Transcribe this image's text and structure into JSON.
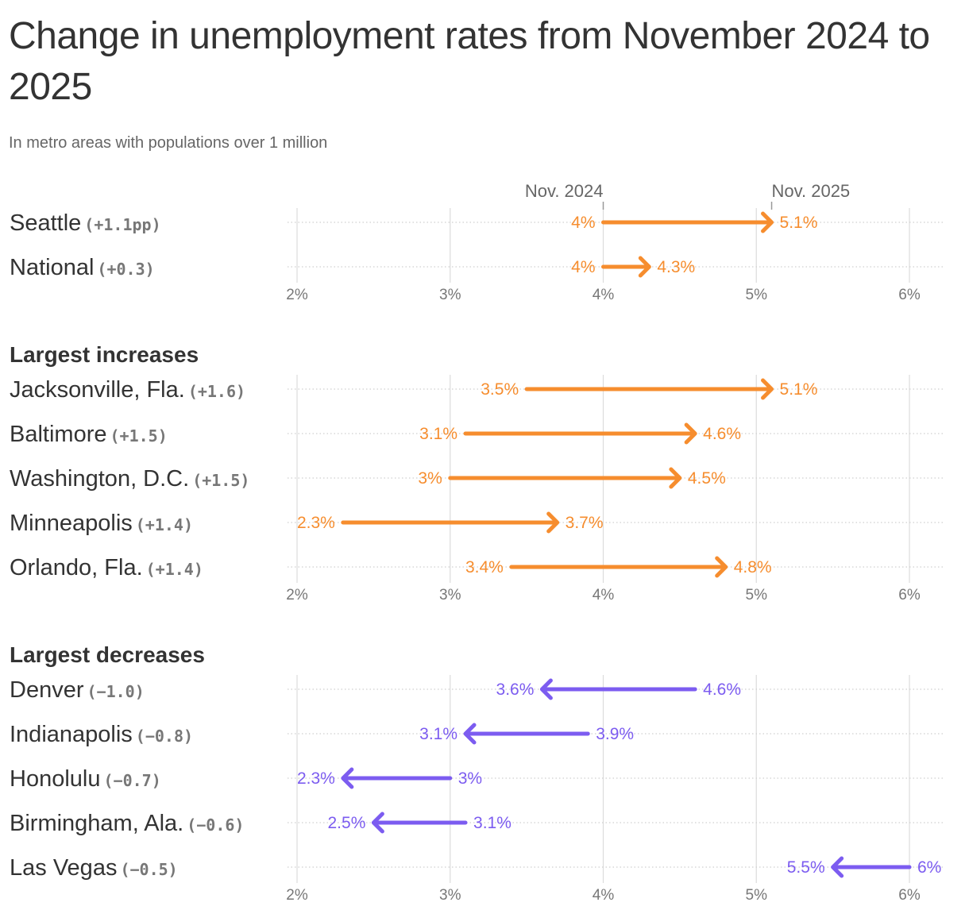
{
  "title": "Change in unemployment rates from November 2024 to 2025",
  "subtitle": "In metro areas with populations over 1 million",
  "colors": {
    "increase": "#f68d2e",
    "decrease": "#7c5cf0",
    "label": "#333333",
    "change": "#777777",
    "axis": "#777777",
    "grid": "#dcdcdc"
  },
  "chart_data": [
    {
      "type": "arrow",
      "group_title": "",
      "endpoint_labels": {
        "start": "Nov. 2024",
        "end": "Nov. 2025"
      },
      "x_ticks": [
        "2%",
        "3%",
        "4%",
        "5%",
        "6%"
      ],
      "xlim": [
        2,
        6
      ],
      "rows": [
        {
          "name": "Seattle",
          "change": "(+1.1pp)",
          "start": 4.0,
          "end": 5.1,
          "start_label": "4%",
          "end_label": "5.1%"
        },
        {
          "name": "National",
          "change": "(+0.3)",
          "start": 4.0,
          "end": 4.3,
          "start_label": "4%",
          "end_label": "4.3%"
        }
      ]
    },
    {
      "type": "arrow",
      "group_title": "Largest increases",
      "x_ticks": [
        "2%",
        "3%",
        "4%",
        "5%",
        "6%"
      ],
      "xlim": [
        2,
        6
      ],
      "rows": [
        {
          "name": "Jacksonville, Fla.",
          "change": "(+1.6)",
          "start": 3.5,
          "end": 5.1,
          "start_label": "3.5%",
          "end_label": "5.1%"
        },
        {
          "name": "Baltimore",
          "change": "(+1.5)",
          "start": 3.1,
          "end": 4.6,
          "start_label": "3.1%",
          "end_label": "4.6%"
        },
        {
          "name": "Washington, D.C.",
          "change": "(+1.5)",
          "start": 3.0,
          "end": 4.5,
          "start_label": "3%",
          "end_label": "4.5%"
        },
        {
          "name": "Minneapolis",
          "change": "(+1.4)",
          "start": 2.3,
          "end": 3.7,
          "start_label": "2.3%",
          "end_label": "3.7%"
        },
        {
          "name": "Orlando, Fla.",
          "change": "(+1.4)",
          "start": 3.4,
          "end": 4.8,
          "start_label": "3.4%",
          "end_label": "4.8%"
        }
      ]
    },
    {
      "type": "arrow",
      "group_title": "Largest decreases",
      "x_ticks": [
        "2%",
        "3%",
        "4%",
        "5%",
        "6%"
      ],
      "xlim": [
        2,
        6
      ],
      "rows": [
        {
          "name": "Denver",
          "change": "(−1.0)",
          "start": 4.6,
          "end": 3.6,
          "start_label": "4.6%",
          "end_label": "3.6%"
        },
        {
          "name": "Indianapolis",
          "change": "(−0.8)",
          "start": 3.9,
          "end": 3.1,
          "start_label": "3.9%",
          "end_label": "3.1%"
        },
        {
          "name": "Honolulu",
          "change": "(−0.7)",
          "start": 3.0,
          "end": 2.3,
          "start_label": "3%",
          "end_label": "2.3%"
        },
        {
          "name": "Birmingham, Ala.",
          "change": "(−0.6)",
          "start": 3.1,
          "end": 2.5,
          "start_label": "3.1%",
          "end_label": "2.5%"
        },
        {
          "name": "Las Vegas",
          "change": "(−0.5)",
          "start": 6.0,
          "end": 5.5,
          "start_label": "6%",
          "end_label": "5.5%"
        }
      ]
    }
  ]
}
